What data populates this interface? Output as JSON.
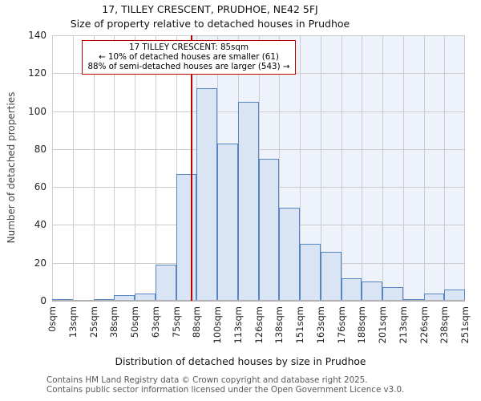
{
  "header": {
    "title": "17, TILLEY CRESCENT, PRUDHOE, NE42 5FJ",
    "subtitle": "Size of property relative to detached houses in Prudhoe"
  },
  "annotation": {
    "lines": [
      "17 TILLEY CRESCENT: 85sqm",
      "← 10% of detached houses are smaller (61)",
      "88% of semi-detached houses are larger (543) →"
    ]
  },
  "chart_data": {
    "type": "bar",
    "histogram": true,
    "categories": [
      "0sqm",
      "13sqm",
      "25sqm",
      "38sqm",
      "50sqm",
      "63sqm",
      "75sqm",
      "88sqm",
      "100sqm",
      "113sqm",
      "126sqm",
      "138sqm",
      "151sqm",
      "163sqm",
      "176sqm",
      "188sqm",
      "201sqm",
      "213sqm",
      "226sqm",
      "238sqm",
      "251sqm"
    ],
    "values": [
      1,
      0,
      1,
      3,
      4,
      19,
      67,
      112,
      83,
      105,
      75,
      49,
      30,
      26,
      12,
      10,
      7,
      1,
      4,
      6
    ],
    "title": "17, TILLEY CRESCENT, PRUDHOE, NE42 5FJ",
    "subtitle": "Size of property relative to detached houses in Prudhoe",
    "xlabel": "Distribution of detached houses by size in Prudhoe",
    "ylabel": "Number of detached properties",
    "ylim": [
      0,
      140
    ],
    "yticks": [
      0,
      20,
      40,
      60,
      80,
      100,
      120,
      140
    ],
    "x_range_sqm": [
      0,
      251
    ],
    "marker": {
      "value_sqm": 85,
      "label": "17 TILLEY CRESCENT: 85sqm"
    },
    "grid": true,
    "legend": "none",
    "colors": {
      "bar_fill": "#d9e4f4",
      "bar_edge": "#5585c5",
      "marker_line": "#bb0000",
      "annotation_border": "#bb0000",
      "gridline": "#cccccc",
      "shade_right_of_marker": "#eef3fb",
      "axis_line": "#b0b0b0"
    }
  },
  "footer": {
    "lines": [
      "Contains HM Land Registry data © Crown copyright and database right 2025.",
      "Contains public sector information licensed under the Open Government Licence v3.0."
    ]
  }
}
